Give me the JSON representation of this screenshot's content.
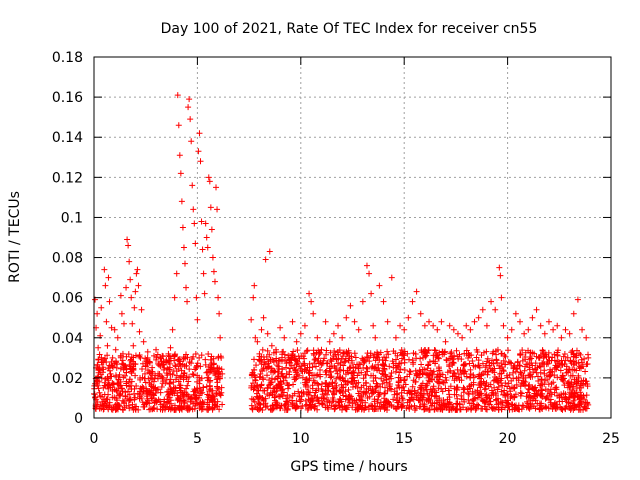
{
  "chart_data": {
    "type": "scatter",
    "title": "Day 100 of 2021, Rate Of TEC Index for receiver cn55",
    "xlabel": "GPS time / hours",
    "ylabel": "ROTI / TECUs",
    "xlim": [
      0,
      25
    ],
    "ylim": [
      0,
      0.18
    ],
    "x_ticks": [
      0,
      5,
      10,
      15,
      20,
      25
    ],
    "y_ticks": [
      0,
      0.02,
      0.04,
      0.06,
      0.08,
      0.1,
      0.12,
      0.14,
      0.16,
      0.18
    ],
    "x_tick_labels": [
      "0",
      "5",
      "10",
      "15",
      "20",
      "25"
    ],
    "y_tick_labels": [
      "0",
      "0.02",
      "0.04",
      "0.06",
      "0.08",
      "0.1",
      "0.12",
      "0.14",
      "0.16",
      "0.18"
    ],
    "grid": true,
    "marker": "+",
    "color": "#ff0000",
    "series": [
      {
        "name": "ROTI",
        "note": "dense band of points; representative sample of the visible distribution",
        "points": [
          [
            0.0,
            0.012
          ],
          [
            0.05,
            0.059
          ],
          [
            0.1,
            0.045
          ],
          [
            0.1,
            0.025
          ],
          [
            0.15,
            0.052
          ],
          [
            0.2,
            0.035
          ],
          [
            0.25,
            0.018
          ],
          [
            0.3,
            0.041
          ],
          [
            0.35,
            0.055
          ],
          [
            0.4,
            0.028
          ],
          [
            0.45,
            0.015
          ],
          [
            0.5,
            0.074
          ],
          [
            0.55,
            0.066
          ],
          [
            0.6,
            0.048
          ],
          [
            0.65,
            0.036
          ],
          [
            0.7,
            0.07
          ],
          [
            0.75,
            0.058
          ],
          [
            0.8,
            0.022
          ],
          [
            0.85,
            0.045
          ],
          [
            0.9,
            0.03
          ],
          [
            0.95,
            0.017
          ],
          [
            1.0,
            0.044
          ],
          [
            1.05,
            0.034
          ],
          [
            1.1,
            0.025
          ],
          [
            1.15,
            0.04
          ],
          [
            1.2,
            0.019
          ],
          [
            1.3,
            0.061
          ],
          [
            1.35,
            0.052
          ],
          [
            1.4,
            0.032
          ],
          [
            1.45,
            0.047
          ],
          [
            1.5,
            0.021
          ],
          [
            1.55,
            0.065
          ],
          [
            1.6,
            0.089
          ],
          [
            1.65,
            0.086
          ],
          [
            1.7,
            0.078
          ],
          [
            1.75,
            0.069
          ],
          [
            1.8,
            0.06
          ],
          [
            1.85,
            0.047
          ],
          [
            1.9,
            0.036
          ],
          [
            1.95,
            0.055
          ],
          [
            2.0,
            0.063
          ],
          [
            2.05,
            0.072
          ],
          [
            2.1,
            0.074
          ],
          [
            2.15,
            0.066
          ],
          [
            2.2,
            0.043
          ],
          [
            2.25,
            0.03
          ],
          [
            2.3,
            0.054
          ],
          [
            2.4,
            0.038
          ],
          [
            2.5,
            0.026
          ],
          [
            2.6,
            0.033
          ],
          [
            2.7,
            0.028
          ],
          [
            2.8,
            0.022
          ],
          [
            2.9,
            0.031
          ],
          [
            3.0,
            0.034
          ],
          [
            3.1,
            0.027
          ],
          [
            3.2,
            0.03
          ],
          [
            3.3,
            0.031
          ],
          [
            3.4,
            0.025
          ],
          [
            3.5,
            0.029
          ],
          [
            3.6,
            0.032
          ],
          [
            3.7,
            0.035
          ],
          [
            3.8,
            0.044
          ],
          [
            3.9,
            0.06
          ],
          [
            4.0,
            0.072
          ],
          [
            4.05,
            0.161
          ],
          [
            4.1,
            0.146
          ],
          [
            4.15,
            0.131
          ],
          [
            4.2,
            0.122
          ],
          [
            4.25,
            0.108
          ],
          [
            4.3,
            0.095
          ],
          [
            4.35,
            0.085
          ],
          [
            4.4,
            0.077
          ],
          [
            4.45,
            0.065
          ],
          [
            4.5,
            0.058
          ],
          [
            4.55,
            0.155
          ],
          [
            4.6,
            0.159
          ],
          [
            4.65,
            0.149
          ],
          [
            4.7,
            0.138
          ],
          [
            4.75,
            0.116
          ],
          [
            4.8,
            0.104
          ],
          [
            4.85,
            0.097
          ],
          [
            4.9,
            0.087
          ],
          [
            4.95,
            0.06
          ],
          [
            5.0,
            0.049
          ],
          [
            5.05,
            0.133
          ],
          [
            5.1,
            0.142
          ],
          [
            5.15,
            0.128
          ],
          [
            5.2,
            0.098
          ],
          [
            5.25,
            0.084
          ],
          [
            5.3,
            0.072
          ],
          [
            5.35,
            0.062
          ],
          [
            5.4,
            0.097
          ],
          [
            5.45,
            0.09
          ],
          [
            5.5,
            0.085
          ],
          [
            5.55,
            0.12
          ],
          [
            5.6,
            0.118
          ],
          [
            5.65,
            0.105
          ],
          [
            5.7,
            0.094
          ],
          [
            5.75,
            0.08
          ],
          [
            5.8,
            0.073
          ],
          [
            5.85,
            0.068
          ],
          [
            5.9,
            0.115
          ],
          [
            5.95,
            0.104
          ],
          [
            6.0,
            0.06
          ],
          [
            6.05,
            0.052
          ],
          [
            6.1,
            0.04
          ],
          [
            6.15,
            0.03
          ],
          [
            6.2,
            0.022
          ],
          [
            7.6,
            0.049
          ],
          [
            7.7,
            0.06
          ],
          [
            7.75,
            0.066
          ],
          [
            7.8,
            0.04
          ],
          [
            7.9,
            0.038
          ],
          [
            8.0,
            0.032
          ],
          [
            8.1,
            0.044
          ],
          [
            8.2,
            0.05
          ],
          [
            8.3,
            0.079
          ],
          [
            8.4,
            0.042
          ],
          [
            8.5,
            0.083
          ],
          [
            8.6,
            0.036
          ],
          [
            8.7,
            0.028
          ],
          [
            8.8,
            0.034
          ],
          [
            9.0,
            0.045
          ],
          [
            9.2,
            0.04
          ],
          [
            9.4,
            0.03
          ],
          [
            9.6,
            0.048
          ],
          [
            9.8,
            0.038
          ],
          [
            10.0,
            0.042
          ],
          [
            10.2,
            0.046
          ],
          [
            10.4,
            0.062
          ],
          [
            10.5,
            0.058
          ],
          [
            10.6,
            0.052
          ],
          [
            10.8,
            0.04
          ],
          [
            11.0,
            0.034
          ],
          [
            11.2,
            0.048
          ],
          [
            11.4,
            0.038
          ],
          [
            11.6,
            0.042
          ],
          [
            11.8,
            0.046
          ],
          [
            12.0,
            0.04
          ],
          [
            12.2,
            0.05
          ],
          [
            12.4,
            0.056
          ],
          [
            12.6,
            0.048
          ],
          [
            12.8,
            0.044
          ],
          [
            13.0,
            0.058
          ],
          [
            13.2,
            0.076
          ],
          [
            13.3,
            0.072
          ],
          [
            13.4,
            0.062
          ],
          [
            13.5,
            0.046
          ],
          [
            13.6,
            0.04
          ],
          [
            13.8,
            0.066
          ],
          [
            14.0,
            0.058
          ],
          [
            14.2,
            0.048
          ],
          [
            14.4,
            0.07
          ],
          [
            14.6,
            0.04
          ],
          [
            14.8,
            0.046
          ],
          [
            15.0,
            0.044
          ],
          [
            15.2,
            0.05
          ],
          [
            15.4,
            0.058
          ],
          [
            15.6,
            0.063
          ],
          [
            15.8,
            0.052
          ],
          [
            16.0,
            0.046
          ],
          [
            16.2,
            0.048
          ],
          [
            16.4,
            0.046
          ],
          [
            16.6,
            0.044
          ],
          [
            16.8,
            0.048
          ],
          [
            17.0,
            0.038
          ],
          [
            17.2,
            0.046
          ],
          [
            17.4,
            0.044
          ],
          [
            17.6,
            0.042
          ],
          [
            17.8,
            0.04
          ],
          [
            18.0,
            0.046
          ],
          [
            18.2,
            0.044
          ],
          [
            18.4,
            0.048
          ],
          [
            18.6,
            0.05
          ],
          [
            18.8,
            0.054
          ],
          [
            19.0,
            0.046
          ],
          [
            19.2,
            0.058
          ],
          [
            19.4,
            0.054
          ],
          [
            19.6,
            0.075
          ],
          [
            19.65,
            0.071
          ],
          [
            19.7,
            0.06
          ],
          [
            19.8,
            0.046
          ],
          [
            20.0,
            0.04
          ],
          [
            20.2,
            0.044
          ],
          [
            20.4,
            0.052
          ],
          [
            20.6,
            0.048
          ],
          [
            20.8,
            0.042
          ],
          [
            21.0,
            0.044
          ],
          [
            21.2,
            0.05
          ],
          [
            21.4,
            0.054
          ],
          [
            21.6,
            0.046
          ],
          [
            21.8,
            0.042
          ],
          [
            22.0,
            0.048
          ],
          [
            22.2,
            0.044
          ],
          [
            22.4,
            0.046
          ],
          [
            22.6,
            0.04
          ],
          [
            22.8,
            0.044
          ],
          [
            23.0,
            0.042
          ],
          [
            23.2,
            0.052
          ],
          [
            23.4,
            0.059
          ],
          [
            23.6,
            0.044
          ],
          [
            23.8,
            0.04
          ],
          [
            23.9,
            0.03
          ]
        ],
        "band": {
          "segments": [
            {
              "x_start": 0.0,
              "x_end": 6.2,
              "y_min": 0.004,
              "y_max": 0.032
            },
            {
              "x_start": 7.6,
              "x_end": 23.9,
              "y_min": 0.004,
              "y_max": 0.034
            }
          ]
        }
      }
    ]
  }
}
